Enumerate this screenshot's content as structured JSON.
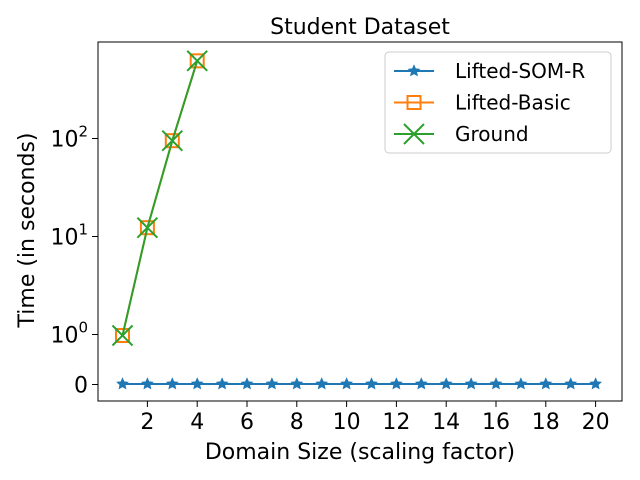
{
  "chart_data": {
    "type": "line",
    "title": "Student Dataset",
    "xlabel": "Domain Size (scaling factor)",
    "ylabel": "Time (in seconds)",
    "yscale": "symlog",
    "xlim": [
      0,
      20.9
    ],
    "x_ticks": [
      2,
      4,
      6,
      8,
      10,
      12,
      14,
      16,
      18,
      20
    ],
    "y_ticks": [
      {
        "value": 0,
        "base": "0",
        "exp": ""
      },
      {
        "value": 1,
        "base": "10",
        "exp": "0"
      },
      {
        "value": 10,
        "base": "10",
        "exp": "1"
      },
      {
        "value": 100,
        "base": "10",
        "exp": "2"
      }
    ],
    "legend_position": "top-right",
    "grid": false,
    "series": [
      {
        "name": "Lifted-SOM-R",
        "color": "#1f77b4",
        "marker": "star",
        "x": [
          1,
          2,
          3,
          4,
          5,
          6,
          7,
          8,
          9,
          10,
          11,
          12,
          13,
          14,
          15,
          16,
          17,
          18,
          19,
          20
        ],
        "y": [
          0.01,
          0.01,
          0.01,
          0.01,
          0.01,
          0.01,
          0.01,
          0.01,
          0.01,
          0.01,
          0.01,
          0.01,
          0.01,
          0.01,
          0.01,
          0.01,
          0.01,
          0.01,
          0.01,
          0.01
        ]
      },
      {
        "name": "Lifted-Basic",
        "color": "#ff7f0e",
        "marker": "square",
        "x": [
          1,
          2,
          3,
          4
        ],
        "y": [
          0.98,
          12.3,
          95,
          620
        ]
      },
      {
        "name": "Ground",
        "color": "#2ca02c",
        "marker": "x",
        "x": [
          1,
          2,
          3,
          4
        ],
        "y": [
          0.98,
          12.3,
          95,
          620
        ]
      }
    ]
  }
}
